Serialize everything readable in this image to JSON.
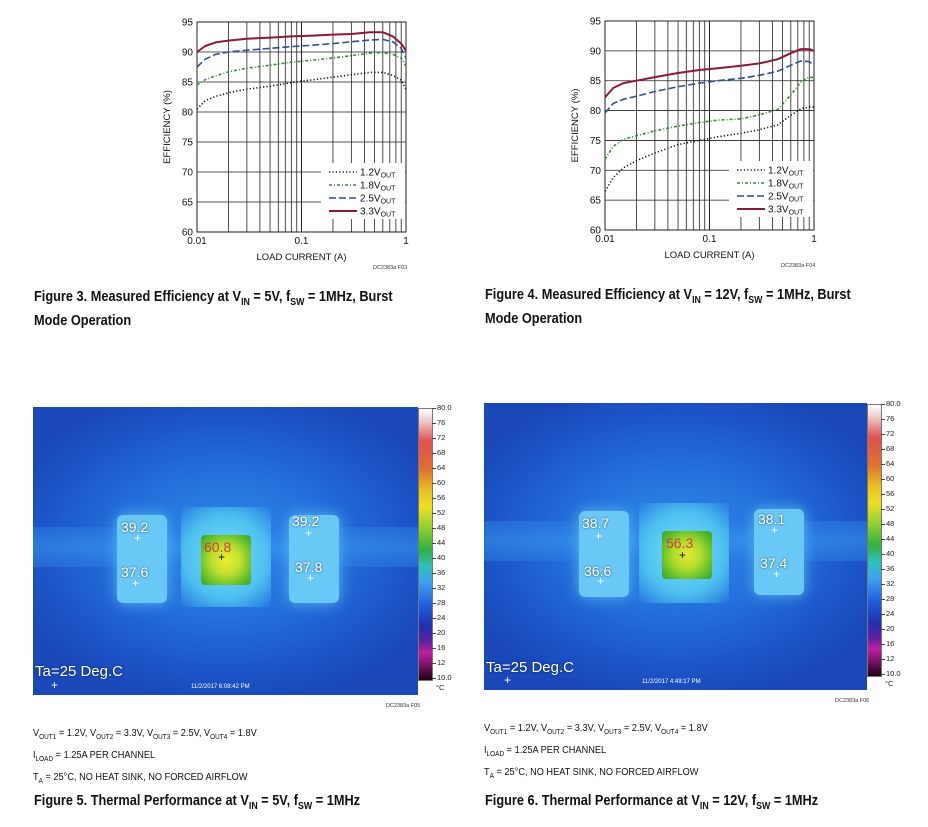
{
  "chart_data": [
    {
      "type": "line",
      "title": "Figure 3. Measured Efficiency at VIN = 5V, fSW = 1MHz, Burst Mode Operation",
      "xlabel": "LOAD CURRENT (A)",
      "ylabel": "EFFICIENCY (%)",
      "xscale": "log",
      "xlim": [
        0.01,
        1
      ],
      "ylim": [
        60,
        95
      ],
      "xticks": [
        "0.01",
        "0.1",
        "1"
      ],
      "yticks": [
        "60",
        "65",
        "70",
        "75",
        "80",
        "85",
        "90",
        "95"
      ],
      "legend_position": "bottom-right",
      "code": "DC2383a F03",
      "series": [
        {
          "name": "1.2VOUT",
          "main": "1.2V",
          "sub": "OUT",
          "style": "dotted",
          "color": "#111111",
          "x": [
            0.01,
            0.012,
            0.015,
            0.02,
            0.03,
            0.05,
            0.08,
            0.12,
            0.2,
            0.3,
            0.45,
            0.6,
            0.75,
            0.9,
            1.0
          ],
          "y": [
            80.5,
            81.9,
            82.6,
            83.2,
            83.8,
            84.3,
            84.9,
            85.3,
            85.8,
            86.2,
            86.6,
            86.6,
            86.1,
            85.3,
            83.8
          ]
        },
        {
          "name": "1.8VOUT",
          "main": "1.8V",
          "sub": "OUT",
          "style": "dashdot",
          "color": "#3a8a3a",
          "x": [
            0.01,
            0.012,
            0.015,
            0.02,
            0.03,
            0.05,
            0.08,
            0.12,
            0.2,
            0.3,
            0.45,
            0.6,
            0.75,
            0.9,
            1.0
          ],
          "y": [
            84.5,
            85.4,
            86.0,
            86.7,
            87.3,
            87.8,
            88.3,
            88.6,
            89.0,
            89.4,
            89.8,
            89.9,
            89.6,
            89.0,
            87.6
          ]
        },
        {
          "name": "2.5VOUT",
          "main": "2.5V",
          "sub": "OUT",
          "style": "dashed",
          "color": "#2f4f9a",
          "x": [
            0.01,
            0.012,
            0.015,
            0.02,
            0.03,
            0.05,
            0.08,
            0.12,
            0.2,
            0.3,
            0.45,
            0.6,
            0.75,
            0.9,
            1.0
          ],
          "y": [
            87.5,
            88.8,
            89.6,
            90.0,
            90.3,
            90.6,
            90.9,
            91.1,
            91.4,
            91.7,
            92.0,
            92.1,
            91.7,
            90.6,
            89.0
          ]
        },
        {
          "name": "3.3VOUT",
          "main": "3.3V",
          "sub": "OUT",
          "style": "solid",
          "color": "#8b1a3a",
          "x": [
            0.01,
            0.012,
            0.015,
            0.02,
            0.03,
            0.05,
            0.08,
            0.12,
            0.2,
            0.3,
            0.45,
            0.6,
            0.75,
            0.9,
            1.0
          ],
          "y": [
            90.0,
            91.0,
            91.6,
            91.9,
            92.2,
            92.4,
            92.6,
            92.7,
            92.9,
            93.0,
            93.3,
            93.3,
            92.6,
            91.4,
            90.2
          ]
        }
      ]
    },
    {
      "type": "line",
      "title": "Figure 4. Measured Efficiency at VIN = 12V, fSW = 1MHz, Burst Mode Operation",
      "xlabel": "LOAD CURRENT (A)",
      "ylabel": "EFFICIENCY (%)",
      "xscale": "log",
      "xlim": [
        0.01,
        1
      ],
      "ylim": [
        60,
        95
      ],
      "xticks": [
        "0.01",
        "0.1",
        "1"
      ],
      "yticks": [
        "60",
        "65",
        "70",
        "75",
        "80",
        "85",
        "90",
        "95"
      ],
      "legend_position": "bottom-right",
      "code": "DC2383a F04",
      "series": [
        {
          "name": "1.2VOUT",
          "main": "1.2V",
          "sub": "OUT",
          "style": "dotted",
          "color": "#111111",
          "x": [
            0.01,
            0.012,
            0.015,
            0.02,
            0.03,
            0.05,
            0.08,
            0.12,
            0.2,
            0.3,
            0.45,
            0.6,
            0.75,
            0.9,
            1.0
          ],
          "y": [
            66.5,
            68.8,
            70.4,
            71.6,
            72.9,
            74.3,
            75.0,
            75.6,
            76.2,
            76.8,
            77.6,
            79.2,
            80.3,
            80.6,
            80.6
          ]
        },
        {
          "name": "1.8VOUT",
          "main": "1.8V",
          "sub": "OUT",
          "style": "dashdot",
          "color": "#3a8a3a",
          "x": [
            0.01,
            0.012,
            0.015,
            0.02,
            0.03,
            0.05,
            0.08,
            0.12,
            0.2,
            0.3,
            0.45,
            0.6,
            0.75,
            0.9,
            1.0
          ],
          "y": [
            71.8,
            74.0,
            75.2,
            75.8,
            76.6,
            77.4,
            78.0,
            78.4,
            78.6,
            79.3,
            80.2,
            82.6,
            84.8,
            85.6,
            85.5
          ]
        },
        {
          "name": "2.5VOUT",
          "main": "2.5V",
          "sub": "OUT",
          "style": "dashed",
          "color": "#2f4f9a",
          "x": [
            0.01,
            0.012,
            0.015,
            0.02,
            0.03,
            0.05,
            0.08,
            0.12,
            0.2,
            0.3,
            0.45,
            0.6,
            0.75,
            0.9,
            1.0
          ],
          "y": [
            79.6,
            81.2,
            81.9,
            82.4,
            83.2,
            84.0,
            84.6,
            85.0,
            85.4,
            85.9,
            86.6,
            87.6,
            88.3,
            88.2,
            87.6
          ]
        },
        {
          "name": "3.3VOUT",
          "main": "3.3V",
          "sub": "OUT",
          "style": "solid",
          "color": "#8b1a3a",
          "x": [
            0.01,
            0.012,
            0.015,
            0.02,
            0.03,
            0.05,
            0.08,
            0.12,
            0.2,
            0.3,
            0.45,
            0.6,
            0.75,
            0.9,
            1.0
          ],
          "y": [
            82.2,
            83.8,
            84.6,
            85.0,
            85.6,
            86.3,
            86.8,
            87.1,
            87.5,
            87.9,
            88.6,
            89.6,
            90.3,
            90.3,
            90.0
          ]
        }
      ]
    }
  ],
  "figures": {
    "fig3": {
      "caption_pre": "Figure 3. Measured Efficiency at V",
      "caption_sub1": "IN",
      "caption_mid": " = 5V, f",
      "caption_sub2": "SW",
      "caption_post": " = 1MHz, Burst",
      "caption_line2": "Mode Operation"
    },
    "fig4": {
      "caption_pre": "Figure 4. Measured Efficiency at V",
      "caption_sub1": "IN",
      "caption_mid": " = 12V, f",
      "caption_sub2": "SW",
      "caption_post": " = 1MHz, Burst",
      "caption_line2": "Mode Operation"
    },
    "fig5": {
      "caption_pre": "Figure 5. Thermal Performance at V",
      "caption_sub1": "IN",
      "caption_mid": " = 5V, f",
      "caption_sub2": "SW",
      "caption_post": " = 1MHz",
      "code": "DC2383a F05",
      "ambient": "Ta=25 Deg.C",
      "timestamp": "11/2/2017 6:08:42 PM",
      "readings": {
        "center": "60.8",
        "top_left": "39.2",
        "bottom_left": "37.6",
        "top_right": "39.2",
        "bottom_right": "37.8"
      }
    },
    "fig6": {
      "caption_pre": "Figure 6. Thermal Performance at V",
      "caption_sub1": "IN",
      "caption_mid": " = 12V, f",
      "caption_sub2": "SW",
      "caption_post": " = 1MHz",
      "code": "DC2383a F06",
      "ambient": "Ta=25 Deg.C",
      "timestamp": "11/2/2017 4:49:17 PM",
      "readings": {
        "center": "56.3",
        "top_left": "38.7",
        "bottom_left": "36.6",
        "top_right": "38.1",
        "bottom_right": "37.4"
      }
    }
  },
  "conditions": {
    "line1": {
      "v1": "V",
      "s1": "OUT1",
      "t1": " = 1.2V, V",
      "s2": "OUT2",
      "t2": " = 3.3V, V",
      "s3": "OUT3",
      "t3": " = 2.5V, V",
      "s4": "OUT4",
      "t4": " = 1.8V"
    },
    "line2": {
      "a": "I",
      "s": "LOAD",
      "b": " = 1.25A PER CHANNEL"
    },
    "line3": {
      "a": "T",
      "s": "A",
      "b": " = 25°C, NO HEAT SINK, NO FORCED AIRFLOW"
    }
  },
  "thermal_scale": {
    "labels": [
      "80.0",
      "76",
      "72",
      "68",
      "64",
      "60",
      "56",
      "52",
      "48",
      "44",
      "40",
      "36",
      "32",
      "28",
      "24",
      "20",
      "16",
      "12",
      "10.0"
    ],
    "unit": "°C"
  },
  "colors": {
    "thermal_bg": "#1f5fd0",
    "hot": "#e8e020",
    "warm": "#46b82a"
  }
}
